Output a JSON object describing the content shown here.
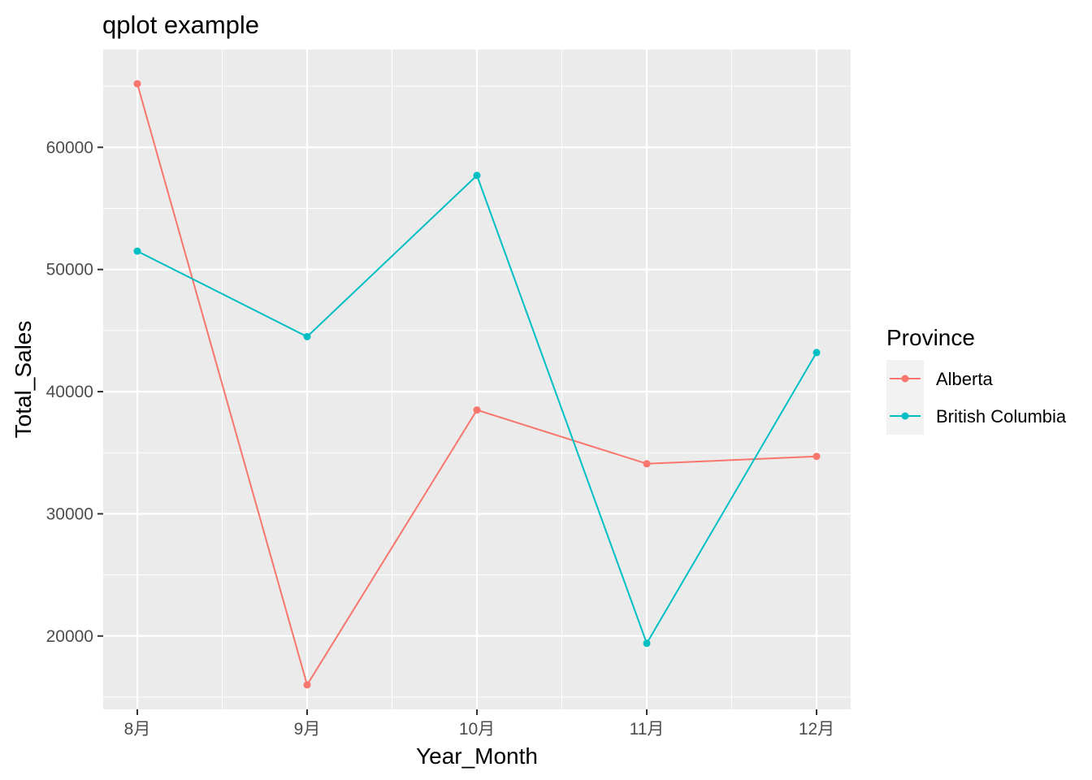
{
  "chart_data": {
    "type": "line",
    "title": "qplot example",
    "xlabel": "Year_Month",
    "ylabel": "Total_Sales",
    "categories": [
      "8月",
      "9月",
      "10月",
      "11月",
      "12月"
    ],
    "series": [
      {
        "name": "Alberta",
        "color": "#F8766D",
        "values": [
          65200,
          16000,
          38500,
          34100,
          34700
        ]
      },
      {
        "name": "British Columbia",
        "color": "#00BFC4",
        "values": [
          51500,
          44500,
          57700,
          19400,
          43200
        ]
      }
    ],
    "yticks": [
      20000,
      30000,
      40000,
      50000,
      60000
    ],
    "ylim": [
      14000,
      68000
    ],
    "grid": true,
    "legend": {
      "title": "Province",
      "position": "right"
    },
    "panel_background": "#EBEBEB"
  }
}
